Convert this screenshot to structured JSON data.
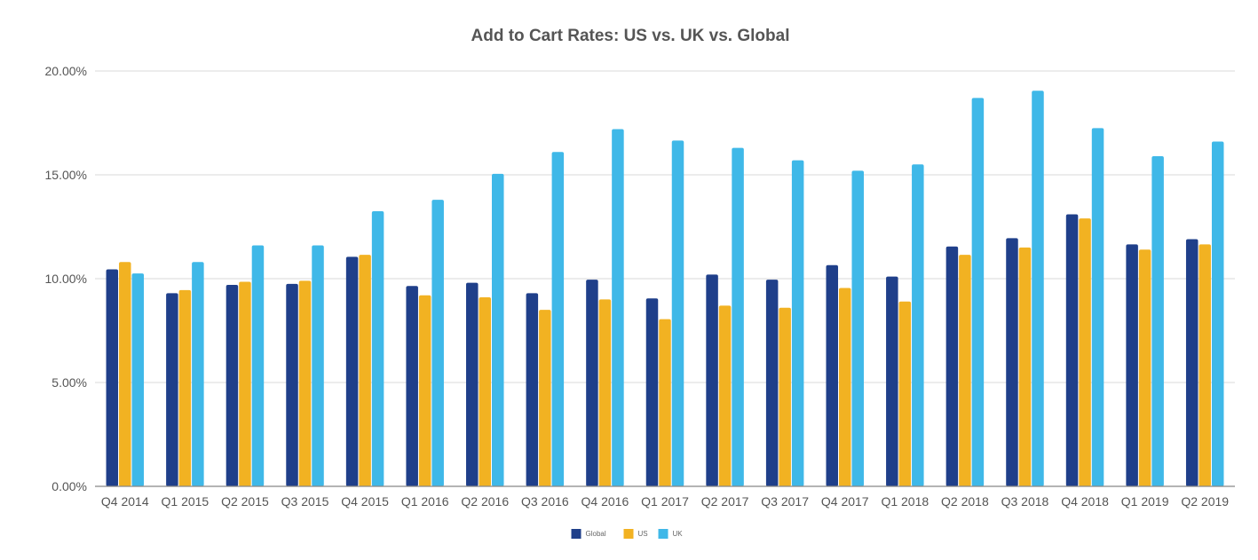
{
  "chart_data": {
    "type": "bar",
    "title": "Add to Cart Rates: US vs. UK vs. Global",
    "xlabel": "",
    "ylabel": "",
    "ylim": [
      0,
      20
    ],
    "y_ticks": [
      "0.00%",
      "5.00%",
      "10.00%",
      "15.00%",
      "20.00%"
    ],
    "y_tick_values": [
      0,
      5,
      10,
      15,
      20
    ],
    "grid": true,
    "legend_position": "bottom-center",
    "categories": [
      "Q4 2014",
      "Q1 2015",
      "Q2 2015",
      "Q3 2015",
      "Q4 2015",
      "Q1 2016",
      "Q2 2016",
      "Q3 2016",
      "Q4 2016",
      "Q1 2017",
      "Q2 2017",
      "Q3 2017",
      "Q4 2017",
      "Q1 2018",
      "Q2 2018",
      "Q3 2018",
      "Q4 2018",
      "Q1 2019",
      "Q2 2019"
    ],
    "series": [
      {
        "name": "Global",
        "color": "#1f3f8a",
        "values": [
          10.45,
          9.3,
          9.7,
          9.75,
          11.05,
          9.65,
          9.8,
          9.3,
          9.95,
          9.05,
          10.2,
          9.95,
          10.65,
          10.1,
          11.55,
          11.95,
          13.1,
          11.65,
          11.9
        ]
      },
      {
        "name": "US",
        "color": "#f2b222",
        "values": [
          10.8,
          9.45,
          9.85,
          9.9,
          11.15,
          9.2,
          9.1,
          8.5,
          9.0,
          8.05,
          8.7,
          8.6,
          9.55,
          8.9,
          11.15,
          11.5,
          12.9,
          11.4,
          11.65
        ]
      },
      {
        "name": "UK",
        "color": "#3fb8e8",
        "values": [
          10.25,
          10.8,
          11.6,
          11.6,
          13.25,
          13.8,
          15.05,
          16.1,
          17.2,
          16.65,
          16.3,
          15.7,
          15.2,
          15.5,
          18.7,
          19.05,
          17.25,
          15.9,
          16.6
        ]
      }
    ]
  }
}
